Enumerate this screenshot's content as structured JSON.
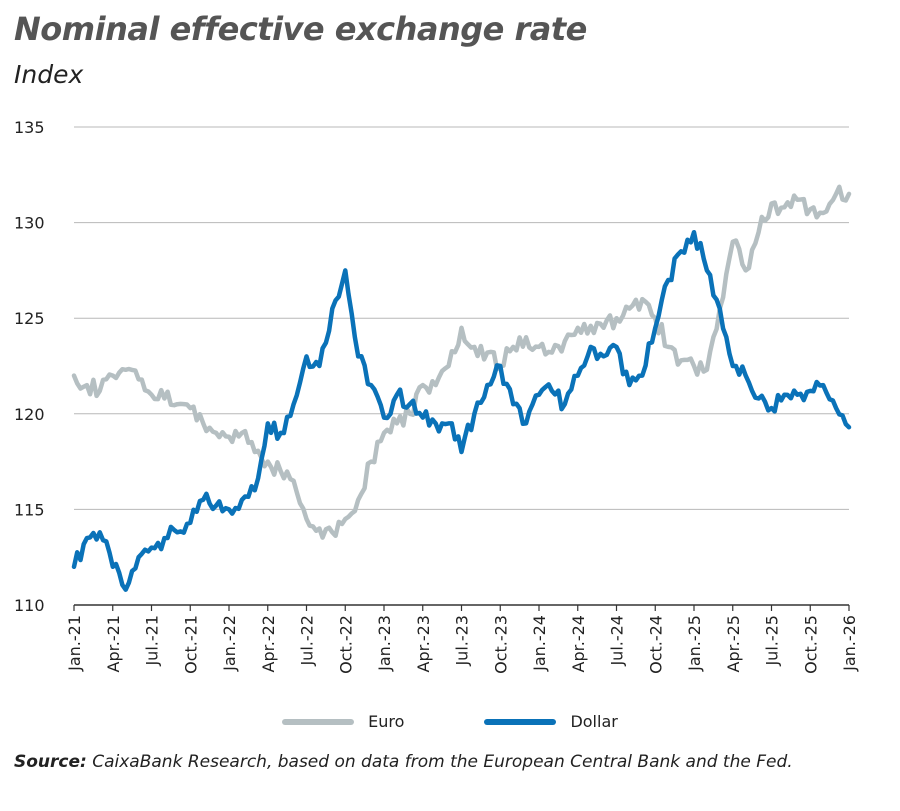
{
  "chart_data": {
    "type": "line",
    "title": "Nominal effective exchange rate",
    "subtitle": "Index",
    "ylim": [
      110,
      135
    ],
    "yticks": [
      110,
      115,
      120,
      125,
      130,
      135
    ],
    "xticks": [
      "Jan.-21",
      "Apr.-21",
      "Jul.-21",
      "Oct.-21",
      "Jan.-22",
      "Apr.-22",
      "Jul.-22",
      "Oct.-22",
      "Jan.-23",
      "Apr.-23",
      "Jul.-23",
      "Oct.-23",
      "Jan.-24",
      "Apr.-24",
      "Jul.-24",
      "Oct.-24",
      "Jan.-25",
      "Apr.-25",
      "Jul.-25",
      "Oct.-25",
      "Jan.-26"
    ],
    "x_start": "2021-01",
    "x_frequency": "monthly",
    "grid": "horizontal",
    "legend_position": "bottom",
    "series": [
      {
        "name": "Euro",
        "color": "#b5bfc2",
        "values": [
          122,
          121.5,
          121.2,
          122,
          122.3,
          121.8,
          121,
          120.8,
          120.5,
          120.3,
          119.5,
          119,
          118.8,
          119,
          118,
          117.5,
          117,
          116.5,
          114.5,
          114,
          113.8,
          114.5,
          115.5,
          117.5,
          119,
          119.5,
          120,
          121.5,
          121.5,
          122.5,
          124.5,
          123.5,
          123.2,
          122.5,
          123.5,
          124,
          123.5,
          123.2,
          123.8,
          124.5,
          124.6,
          124.5,
          125,
          125.5,
          126,
          125,
          123.5,
          122.8,
          122.5,
          122.3,
          125.5,
          129,
          127.5,
          129.5,
          131,
          130.8,
          131.2,
          130.7,
          130.5,
          131.5,
          131.5
        ]
      },
      {
        "name": "Dollar",
        "color": "#0a72b8",
        "values": [
          112,
          113.5,
          113.8,
          112,
          110.8,
          112.5,
          113,
          113.5,
          113.8,
          114.3,
          115.5,
          115.2,
          115,
          115.5,
          116,
          119.5,
          119,
          120.5,
          123,
          122.5,
          125.5,
          127.5,
          123,
          121.5,
          119.8,
          121,
          120.5,
          119.8,
          119.5,
          119.5,
          118,
          120,
          121.5,
          122.5,
          120.5,
          119.5,
          121,
          121.2,
          120.5,
          122,
          123.5,
          123,
          123.5,
          121.5,
          122,
          124.5,
          127,
          128.5,
          129.5,
          127.5,
          125.5,
          122.5,
          122,
          120.8,
          120.3,
          121,
          121,
          121.2,
          121.5,
          120.3,
          119.3
        ]
      }
    ]
  },
  "source": {
    "label": "Source:",
    "text": " CaixaBank Research, based on data from the European Central Bank and the Fed."
  }
}
